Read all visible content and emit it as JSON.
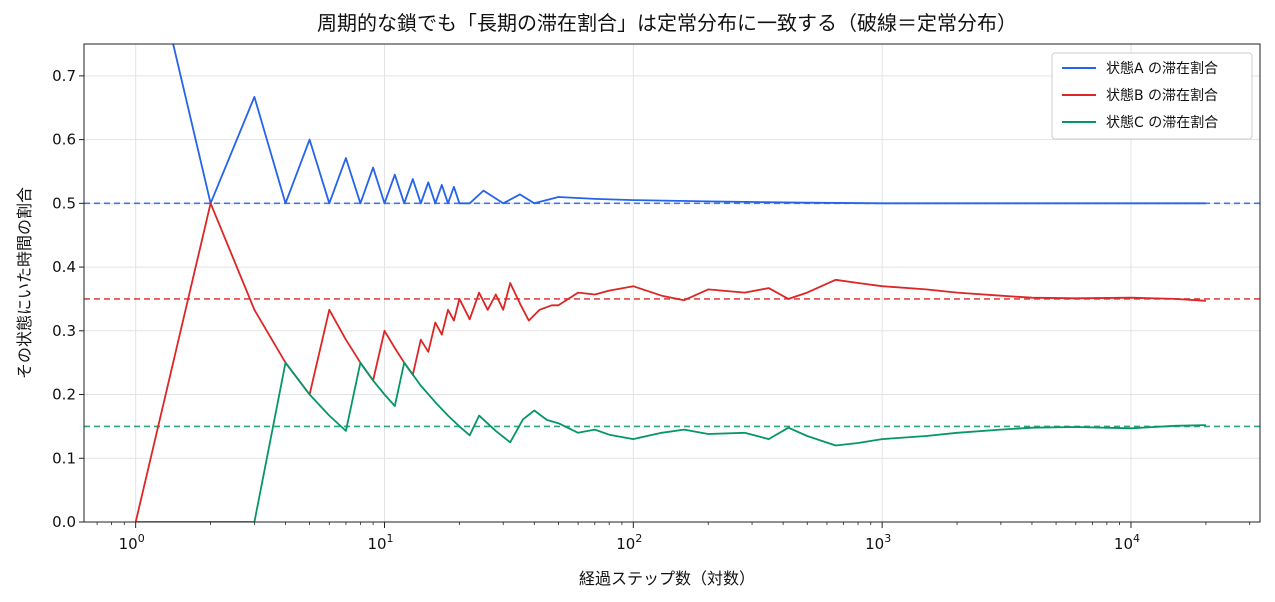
{
  "chart_data": {
    "type": "line",
    "title": "周期的な鎖でも「長期の滞在割合」は定常分布に一致する（破線＝定常分布）",
    "xlabel": "経過ステップ数（対数）",
    "ylabel": "その状態にいた時間の割合",
    "xscale": "log",
    "xlim": [
      0.62,
      33000
    ],
    "ylim": [
      0,
      0.75
    ],
    "xticks": [
      {
        "base": "10",
        "exp": "0",
        "value": 1
      },
      {
        "base": "10",
        "exp": "1",
        "value": 10
      },
      {
        "base": "10",
        "exp": "2",
        "value": 100
      },
      {
        "base": "10",
        "exp": "3",
        "value": 1000
      },
      {
        "base": "10",
        "exp": "4",
        "value": 10000
      }
    ],
    "yticks": [
      "0.0",
      "0.1",
      "0.2",
      "0.3",
      "0.4",
      "0.5",
      "0.6",
      "0.7"
    ],
    "grid": true,
    "legend_position": "top-right",
    "series": [
      {
        "name": "状態A の滞在割合",
        "color": "#2563eb",
        "stationary": 0.5,
        "points": [
          [
            1,
            1.0
          ],
          [
            2,
            0.5
          ],
          [
            3,
            0.667
          ],
          [
            4,
            0.5
          ],
          [
            5,
            0.6
          ],
          [
            6,
            0.5
          ],
          [
            7,
            0.571
          ],
          [
            8,
            0.5
          ],
          [
            9,
            0.556
          ],
          [
            10,
            0.5
          ],
          [
            11,
            0.545
          ],
          [
            12,
            0.5
          ],
          [
            13,
            0.538
          ],
          [
            14,
            0.5
          ],
          [
            15,
            0.533
          ],
          [
            16,
            0.5
          ],
          [
            17,
            0.529
          ],
          [
            18,
            0.5
          ],
          [
            19,
            0.526
          ],
          [
            20,
            0.5
          ],
          [
            22,
            0.5
          ],
          [
            25,
            0.52
          ],
          [
            30,
            0.5
          ],
          [
            35,
            0.514
          ],
          [
            40,
            0.5
          ],
          [
            50,
            0.51
          ],
          [
            70,
            0.507
          ],
          [
            100,
            0.505
          ],
          [
            200,
            0.503
          ],
          [
            500,
            0.501
          ],
          [
            1000,
            0.5
          ],
          [
            5000,
            0.5
          ],
          [
            20000,
            0.5
          ]
        ]
      },
      {
        "name": "状態B の滞在割合",
        "color": "#dc2626",
        "stationary": 0.35,
        "points": [
          [
            1,
            0.0
          ],
          [
            2,
            0.5
          ],
          [
            3,
            0.333
          ],
          [
            4,
            0.25
          ],
          [
            5,
            0.2
          ],
          [
            6,
            0.333
          ],
          [
            7,
            0.286
          ],
          [
            8,
            0.25
          ],
          [
            9,
            0.222
          ],
          [
            10,
            0.3
          ],
          [
            11,
            0.273
          ],
          [
            12,
            0.25
          ],
          [
            13,
            0.231
          ],
          [
            14,
            0.286
          ],
          [
            15,
            0.267
          ],
          [
            16,
            0.313
          ],
          [
            17,
            0.294
          ],
          [
            18,
            0.333
          ],
          [
            19,
            0.316
          ],
          [
            20,
            0.35
          ],
          [
            22,
            0.318
          ],
          [
            24,
            0.36
          ],
          [
            26,
            0.333
          ],
          [
            28,
            0.357
          ],
          [
            30,
            0.333
          ],
          [
            32,
            0.375
          ],
          [
            35,
            0.343
          ],
          [
            38,
            0.316
          ],
          [
            42,
            0.333
          ],
          [
            47,
            0.34
          ],
          [
            50,
            0.34
          ],
          [
            60,
            0.36
          ],
          [
            70,
            0.357
          ],
          [
            80,
            0.363
          ],
          [
            100,
            0.37
          ],
          [
            130,
            0.355
          ],
          [
            160,
            0.348
          ],
          [
            200,
            0.365
          ],
          [
            280,
            0.36
          ],
          [
            350,
            0.367
          ],
          [
            420,
            0.35
          ],
          [
            500,
            0.36
          ],
          [
            650,
            0.38
          ],
          [
            800,
            0.375
          ],
          [
            1000,
            0.37
          ],
          [
            1500,
            0.365
          ],
          [
            2000,
            0.36
          ],
          [
            3000,
            0.355
          ],
          [
            4000,
            0.352
          ],
          [
            6000,
            0.351
          ],
          [
            10000,
            0.352
          ],
          [
            15000,
            0.35
          ],
          [
            20000,
            0.347
          ]
        ]
      },
      {
        "name": "状態C の滞在割合",
        "color": "#059669",
        "stationary": 0.15,
        "points": [
          [
            1,
            0.0
          ],
          [
            3,
            0.0
          ],
          [
            4,
            0.25
          ],
          [
            5,
            0.2
          ],
          [
            6,
            0.167
          ],
          [
            7,
            0.143
          ],
          [
            8,
            0.25
          ],
          [
            9,
            0.222
          ],
          [
            10,
            0.2
          ],
          [
            11,
            0.182
          ],
          [
            12,
            0.25
          ],
          [
            14,
            0.214
          ],
          [
            16,
            0.188
          ],
          [
            18,
            0.167
          ],
          [
            20,
            0.15
          ],
          [
            22,
            0.136
          ],
          [
            24,
            0.167
          ],
          [
            28,
            0.143
          ],
          [
            32,
            0.125
          ],
          [
            36,
            0.161
          ],
          [
            40,
            0.175
          ],
          [
            45,
            0.16
          ],
          [
            50,
            0.155
          ],
          [
            60,
            0.14
          ],
          [
            70,
            0.145
          ],
          [
            80,
            0.137
          ],
          [
            100,
            0.13
          ],
          [
            130,
            0.14
          ],
          [
            160,
            0.145
          ],
          [
            200,
            0.138
          ],
          [
            280,
            0.14
          ],
          [
            350,
            0.13
          ],
          [
            420,
            0.148
          ],
          [
            500,
            0.135
          ],
          [
            650,
            0.12
          ],
          [
            800,
            0.124
          ],
          [
            1000,
            0.13
          ],
          [
            1500,
            0.135
          ],
          [
            2000,
            0.14
          ],
          [
            3000,
            0.145
          ],
          [
            4000,
            0.148
          ],
          [
            6000,
            0.149
          ],
          [
            10000,
            0.147
          ],
          [
            15000,
            0.151
          ],
          [
            20000,
            0.152
          ]
        ]
      }
    ]
  }
}
